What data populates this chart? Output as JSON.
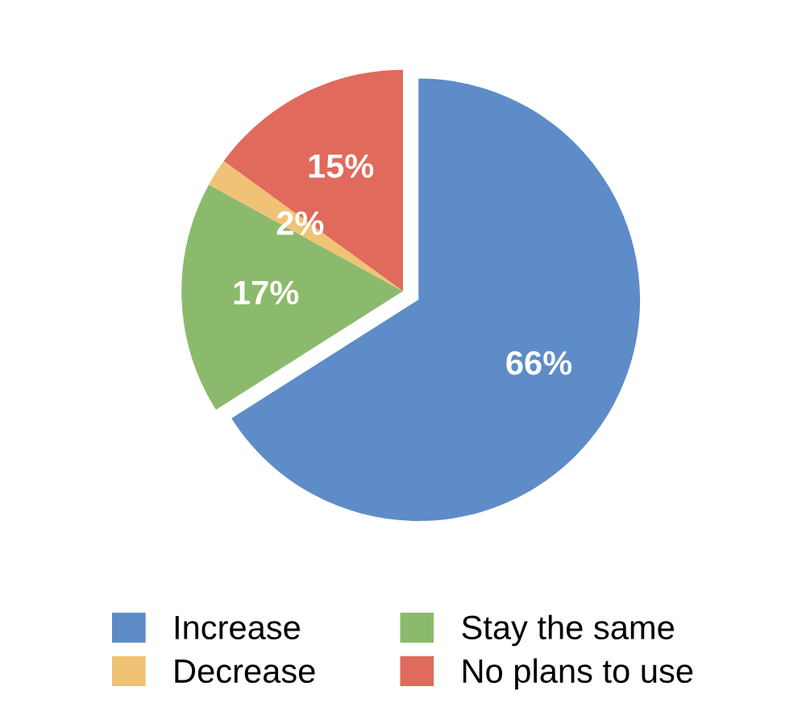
{
  "chart_data": {
    "type": "pie",
    "categories": [
      "Increase",
      "Stay the same",
      "Decrease",
      "No plans to use"
    ],
    "values": [
      66,
      17,
      2,
      15
    ],
    "colors": [
      "#5e8cc8",
      "#8cba6c",
      "#f0c276",
      "#e06a5c"
    ],
    "value_labels": [
      "66%",
      "17%",
      "2%",
      "15%"
    ],
    "legend": "bottom"
  }
}
